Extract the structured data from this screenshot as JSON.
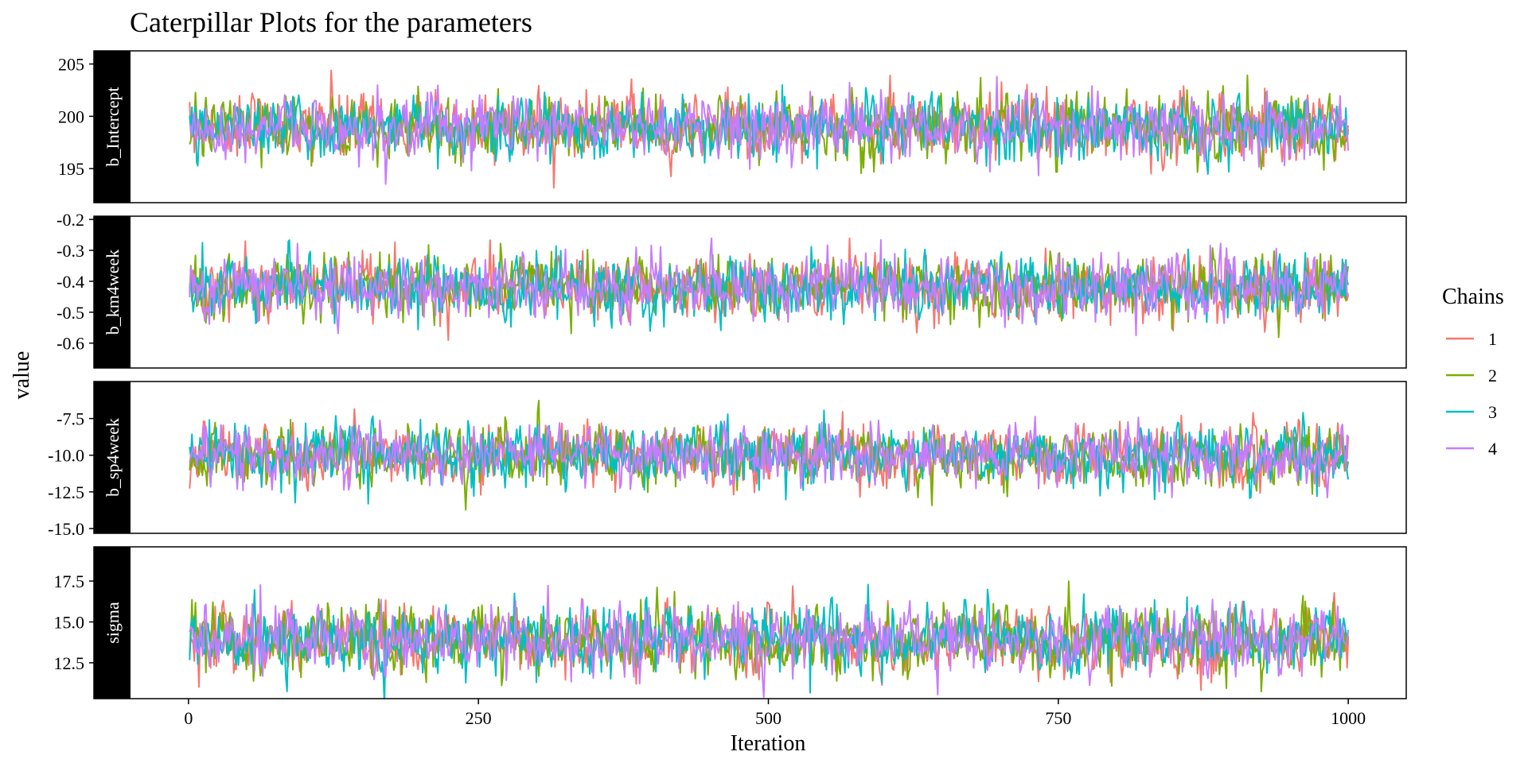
{
  "chart_data": {
    "type": "line",
    "title": "Caterpillar Plots for the parameters",
    "xlabel": "Iteration",
    "ylabel": "value",
    "x_range": [
      0,
      1000
    ],
    "x_ticks": [
      "0",
      "250",
      "500",
      "750",
      "1000"
    ],
    "legend": {
      "title": "Chains",
      "position": "right",
      "entries": [
        {
          "label": "1",
          "color": "#F8766D"
        },
        {
          "label": "2",
          "color": "#7CAE00"
        },
        {
          "label": "3",
          "color": "#00BFC4"
        },
        {
          "label": "4",
          "color": "#C77CFF"
        }
      ]
    },
    "panels": [
      {
        "label": "b_Intercept",
        "ylim": [
          192.2,
          205.8
        ],
        "y_ticks": [
          195,
          200,
          205
        ],
        "y_tick_labels": [
          "195",
          "200",
          "205"
        ],
        "center": 199.0,
        "sd": 1.5
      },
      {
        "label": "b_km4week",
        "ylim": [
          -0.665,
          -0.205
        ],
        "y_ticks": [
          -0.6,
          -0.5,
          -0.4,
          -0.3,
          -0.2
        ],
        "y_tick_labels": [
          "-0.6",
          "-0.5",
          "-0.4",
          "-0.3",
          "-0.2"
        ],
        "center": -0.42,
        "sd": 0.05
      },
      {
        "label": "b_sp4week",
        "ylim": [
          -15.0,
          -5.3
        ],
        "y_ticks": [
          -15.0,
          -12.5,
          -10.0,
          -7.5
        ],
        "y_tick_labels": [
          "-15.0",
          "-12.5",
          "-10.0",
          "-7.5"
        ],
        "center": -10.0,
        "sd": 1.0
      },
      {
        "label": "sigma",
        "ylim": [
          10.6,
          19.3
        ],
        "y_ticks": [
          12.5,
          15.0,
          17.5
        ],
        "y_tick_labels": [
          "12.5",
          "15.0",
          "17.5"
        ],
        "center": 13.9,
        "sd": 1.0
      }
    ],
    "chains": 4,
    "iterations": 1000
  }
}
